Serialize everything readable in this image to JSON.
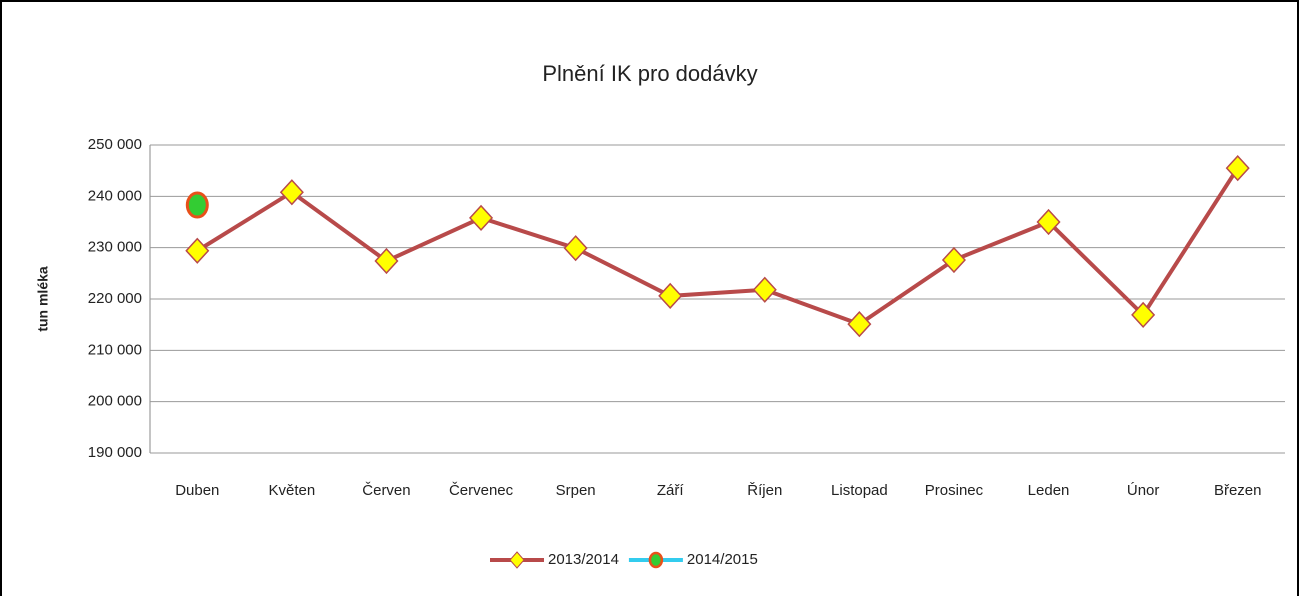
{
  "chart_data": {
    "type": "line",
    "title": "Plnění IK pro dodávky",
    "y_label": "tun mléka",
    "categories": [
      "Duben",
      "Květen",
      "Červen",
      "Červenec",
      "Srpen",
      "Září",
      "Říjen",
      "Listopad",
      "Prosinec",
      "Leden",
      "Únor",
      "Březen"
    ],
    "series": [
      {
        "name": "2013/2014",
        "color": "#b84a4a",
        "marker": "diamond",
        "marker_color": "#ffff00",
        "marker_edge": "#b84a4a",
        "values": [
          229400,
          240800,
          227400,
          235800,
          229900,
          220600,
          221800,
          215100,
          227600,
          235000,
          216900,
          245500
        ]
      },
      {
        "name": "2014/2015",
        "color": "#33ccee",
        "marker": "circle",
        "marker_color": "#33cc33",
        "marker_edge": "#e8501a",
        "values": [
          238300,
          null,
          null,
          null,
          null,
          null,
          null,
          null,
          null,
          null,
          null,
          null
        ]
      }
    ],
    "ylim": [
      190000,
      250000
    ],
    "yticks": [
      {
        "value": 190000,
        "label": "190 000"
      },
      {
        "value": 200000,
        "label": "200 000"
      },
      {
        "value": 210000,
        "label": "210 000"
      },
      {
        "value": 220000,
        "label": "220 000"
      },
      {
        "value": 230000,
        "label": "230 000"
      },
      {
        "value": 240000,
        "label": "240 000"
      },
      {
        "value": 250000,
        "label": "250 000"
      }
    ],
    "grid": true,
    "legend": "bottom"
  }
}
